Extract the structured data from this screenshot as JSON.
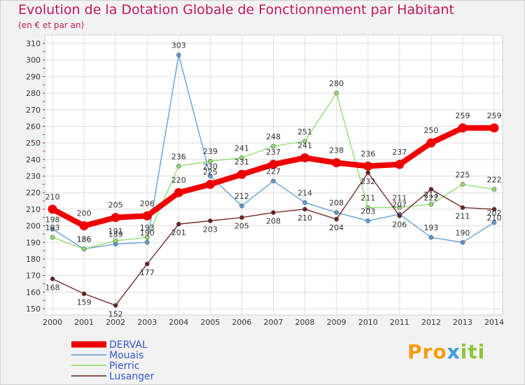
{
  "chart_data": {
    "type": "line",
    "title": "Evolution de la Dotation Globale de Fonctionnement par Habitant",
    "subtitle": "(en € et par an)",
    "x": [
      "2000",
      "2001",
      "2002",
      "2003",
      "2004",
      "2005",
      "2006",
      "2007",
      "2008",
      "2009",
      "2010",
      "2011",
      "2012",
      "2013",
      "2014"
    ],
    "ylim": [
      150,
      310
    ],
    "yticks": [
      150,
      160,
      170,
      180,
      190,
      200,
      210,
      220,
      230,
      240,
      250,
      260,
      270,
      280,
      290,
      300,
      310
    ],
    "grid": true,
    "legend_position": "bottom-left",
    "series": [
      {
        "name": "DERVAL",
        "color": "#ee0000",
        "values": [
          210,
          200,
          205,
          206,
          220,
          225,
          231,
          237,
          241,
          238,
          236,
          237,
          250,
          259,
          259
        ]
      },
      {
        "name": "Mouais",
        "color": "#5b9bd5",
        "values": [
          198,
          186,
          189,
          190,
          303,
          230,
          212,
          227,
          214,
          208,
          203,
          207,
          193,
          190,
          202
        ]
      },
      {
        "name": "Pierric",
        "color": "#8fdc6a",
        "values": [
          193,
          186,
          191,
          193,
          236,
          239,
          241,
          248,
          251,
          280,
          211,
          211,
          213,
          225,
          222
        ]
      },
      {
        "name": "Lusanger",
        "color": "#6b1e1e",
        "values": [
          168,
          159,
          152,
          177,
          201,
          203,
          205,
          208,
          210,
          204,
          232,
          206,
          222,
          211,
          210
        ]
      }
    ]
  },
  "logo": {
    "part1": "Pro",
    "part2": "x",
    "part3": "iti"
  }
}
